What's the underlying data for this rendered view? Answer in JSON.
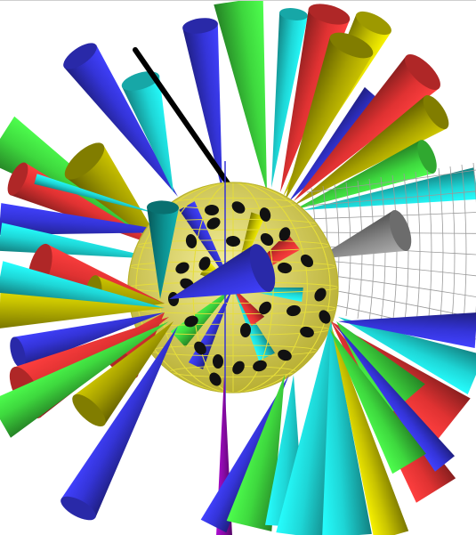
{
  "scene": {
    "subject": "3d-cone-cluster-around-wireframe-sphere",
    "background_color": "#ffffff",
    "palette": {
      "red": "#e03232",
      "green": "#3ed83e",
      "blue": "#3434d8",
      "yellow": "#c9c400",
      "cyan": "#1ed6d6",
      "teal": "#0c8f8f",
      "olive": "#a6a000",
      "gray": "#8a8a8a",
      "purple": "#8a0aa8",
      "black": "#000000",
      "sphere_fill": "#d8d15a",
      "sphere_grid": "#e6de3a",
      "sphere_spot": "#111111",
      "mesh_line": "#9a9a9a"
    }
  }
}
